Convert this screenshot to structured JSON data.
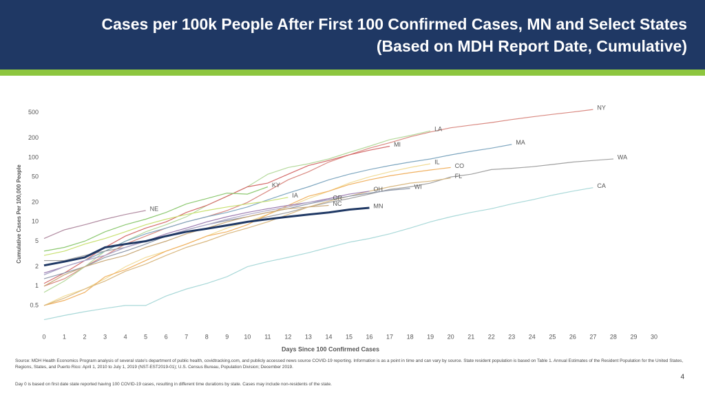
{
  "chart_data": {
    "type": "line",
    "title": "Cases per 100k People After First 100 Confirmed Cases, MN and Select States",
    "subtitle": "(Based on MDH Report Date, Cumulative)",
    "x_label": "Days Since 100 Confirmed Cases",
    "y_label": "Cumulative Cases Per 100,000 People",
    "log_y": true,
    "grid": false,
    "xlim": [
      0,
      30
    ],
    "xticks": [
      0,
      1,
      2,
      3,
      4,
      5,
      6,
      7,
      8,
      9,
      10,
      11,
      12,
      13,
      14,
      15,
      16,
      17,
      18,
      19,
      20,
      21,
      22,
      23,
      24,
      25,
      26,
      27,
      28,
      29,
      30
    ],
    "ylim": [
      0.25,
      700
    ],
    "yticks": [
      0.5,
      1,
      2,
      5,
      10,
      20,
      50,
      100,
      200,
      500
    ],
    "x": [
      0,
      1,
      2,
      3,
      4,
      5,
      6,
      7,
      8,
      9,
      10,
      11,
      12,
      13,
      14,
      15,
      16,
      17,
      18,
      19,
      20,
      21,
      22,
      23,
      24,
      25,
      26,
      27,
      28
    ],
    "series": [
      {
        "name": "NY",
        "color": "#d98880",
        "values": [
          1,
          1.3,
          2,
          3,
          4.5,
          6,
          8,
          10,
          12,
          15,
          20,
          30,
          45,
          60,
          85,
          110,
          140,
          170,
          210,
          250,
          290,
          320,
          350,
          390,
          430,
          470,
          510,
          560,
          null
        ]
      },
      {
        "name": "LA",
        "color": "#b5d99c",
        "values": [
          0.8,
          1.2,
          2,
          3.5,
          5,
          7,
          9,
          12,
          18,
          25,
          35,
          55,
          70,
          80,
          95,
          120,
          150,
          190,
          220,
          260,
          null,
          null,
          null,
          null,
          null,
          null,
          null,
          null,
          null
        ]
      },
      {
        "name": "MI",
        "color": "#d46a6a",
        "values": [
          1.1,
          1.6,
          2.5,
          4,
          6,
          8,
          10,
          14,
          18,
          25,
          35,
          40,
          55,
          75,
          90,
          110,
          130,
          150,
          null,
          null,
          null,
          null,
          null,
          null,
          null,
          null,
          null,
          null,
          null
        ]
      },
      {
        "name": "MA",
        "color": "#7fa7c0",
        "values": [
          1.5,
          2,
          2.5,
          3.5,
          5,
          6.5,
          8,
          10,
          12,
          14,
          17,
          22,
          28,
          35,
          45,
          55,
          65,
          75,
          85,
          95,
          110,
          125,
          140,
          160,
          null,
          null,
          null,
          null,
          null
        ]
      },
      {
        "name": "WA",
        "color": "#a0a0a0",
        "values": [
          2.5,
          2.5,
          3,
          3.5,
          4,
          5,
          6,
          7,
          8,
          9,
          10,
          12,
          14,
          17,
          20,
          23,
          27,
          32,
          35,
          40,
          50,
          55,
          65,
          68,
          72,
          78,
          85,
          90,
          95
        ]
      },
      {
        "name": "CA",
        "color": "#a8d8d8",
        "values": [
          0.3,
          0.35,
          0.4,
          0.45,
          0.5,
          0.5,
          0.7,
          0.9,
          1.1,
          1.4,
          2,
          2.4,
          2.8,
          3.3,
          4,
          4.8,
          5.5,
          6.5,
          8,
          10,
          12,
          14,
          16,
          19,
          22,
          26,
          30,
          34,
          null
        ]
      },
      {
        "name": "IL",
        "color": "#f2dc98",
        "values": [
          0.5,
          0.7,
          0.9,
          1.3,
          2,
          2.8,
          3.5,
          4.5,
          6,
          8,
          10,
          13,
          17,
          23,
          30,
          40,
          50,
          60,
          70,
          80,
          null,
          null,
          null,
          null,
          null,
          null,
          null,
          null,
          null
        ]
      },
      {
        "name": "CO",
        "color": "#f0b060",
        "values": [
          0.5,
          0.6,
          0.8,
          1.4,
          1.8,
          2.5,
          3.5,
          4.5,
          6,
          7,
          9,
          13,
          18,
          25,
          30,
          38,
          45,
          52,
          58,
          64,
          70,
          null,
          null,
          null,
          null,
          null,
          null,
          null,
          null
        ]
      },
      {
        "name": "FL",
        "color": "#d9b880",
        "values": [
          0.5,
          0.65,
          0.9,
          1.2,
          1.7,
          2.2,
          3,
          4,
          5,
          6.5,
          8,
          10,
          13,
          17,
          21,
          25,
          30,
          35,
          40,
          43,
          48,
          null,
          null,
          null,
          null,
          null,
          null,
          null,
          null
        ]
      },
      {
        "name": "WI",
        "color": "#8c96a8",
        "values": [
          1.3,
          1.6,
          2,
          2.8,
          3.5,
          4.5,
          6,
          7.5,
          9,
          10.5,
          12,
          14,
          16,
          19,
          22,
          25,
          28,
          31,
          33,
          null,
          null,
          null,
          null,
          null,
          null,
          null,
          null,
          null,
          null
        ]
      },
      {
        "name": "OH",
        "color": "#9b7bb0",
        "values": [
          1.6,
          2,
          2.5,
          3,
          4,
          5,
          6.5,
          8,
          10,
          12,
          14,
          16,
          18,
          20,
          23,
          27,
          30,
          null,
          null,
          null,
          null,
          null,
          null,
          null,
          null,
          null,
          null,
          null,
          null
        ]
      },
      {
        "name": "KY",
        "color": "#8cc870",
        "values": [
          3.5,
          4,
          5,
          7,
          9,
          11,
          14,
          19,
          23,
          28,
          27,
          35,
          null,
          null,
          null,
          null,
          null,
          null,
          null,
          null,
          null,
          null,
          null,
          null,
          null,
          null,
          null,
          null,
          null
        ]
      },
      {
        "name": "IA",
        "color": "#c8e070",
        "values": [
          3,
          3.5,
          4.5,
          5.5,
          7,
          9,
          11,
          13,
          15,
          17,
          19,
          21,
          24,
          null,
          null,
          null,
          null,
          null,
          null,
          null,
          null,
          null,
          null,
          null,
          null,
          null,
          null,
          null,
          null
        ]
      },
      {
        "name": "NE",
        "color": "#b08aa0",
        "values": [
          5.5,
          7.5,
          9,
          11,
          13,
          15,
          null,
          null,
          null,
          null,
          null,
          null,
          null,
          null,
          null,
          null,
          null,
          null,
          null,
          null,
          null,
          null,
          null,
          null,
          null,
          null,
          null,
          null,
          null
        ]
      },
      {
        "name": "OR",
        "color": "#b0a8c8",
        "values": [
          1.5,
          2,
          2.5,
          3,
          4,
          5,
          6,
          7.5,
          9,
          11,
          13,
          15,
          17,
          20,
          22,
          null,
          null,
          null,
          null,
          null,
          null,
          null,
          null,
          null,
          null,
          null,
          null,
          null,
          null
        ]
      },
      {
        "name": "NC",
        "color": "#c8a878",
        "values": [
          1,
          1.5,
          2,
          2.5,
          3,
          4,
          5,
          6.5,
          8,
          10,
          12,
          14,
          16,
          17,
          18,
          null,
          null,
          null,
          null,
          null,
          null,
          null,
          null,
          null,
          null,
          null,
          null,
          null,
          null
        ]
      },
      {
        "name": "MN",
        "color": "#1f3864",
        "values": [
          2.1,
          2.4,
          2.8,
          4,
          4.5,
          5,
          6,
          7,
          7.8,
          8.8,
          10,
          11,
          12,
          13,
          14,
          15.5,
          16.5,
          null,
          null,
          null,
          null,
          null,
          null,
          null,
          null,
          null,
          null,
          null,
          null
        ]
      }
    ]
  },
  "footer": {
    "source": "Source: MDH Health Economics Program analysis of several state's department of public health, covidtracking.com, and publicly accessed news source COVID-19 reporting. Information is as a point in time and can vary by source. State resident population is based on Table 1. Annual Estimates of the Resident Population for the United States, Regions, States, and Puerto Rico: April 1, 2010 to July 1, 2019 (NST-EST2019-01); U.S. Census Bureau, Population Division; December 2019.",
    "note": "Day 0 is based on first date state reported having 100 COVID-19 cases, resulting in different time durations by state. Cases may include non-residents of the state.",
    "page_number": "4"
  }
}
